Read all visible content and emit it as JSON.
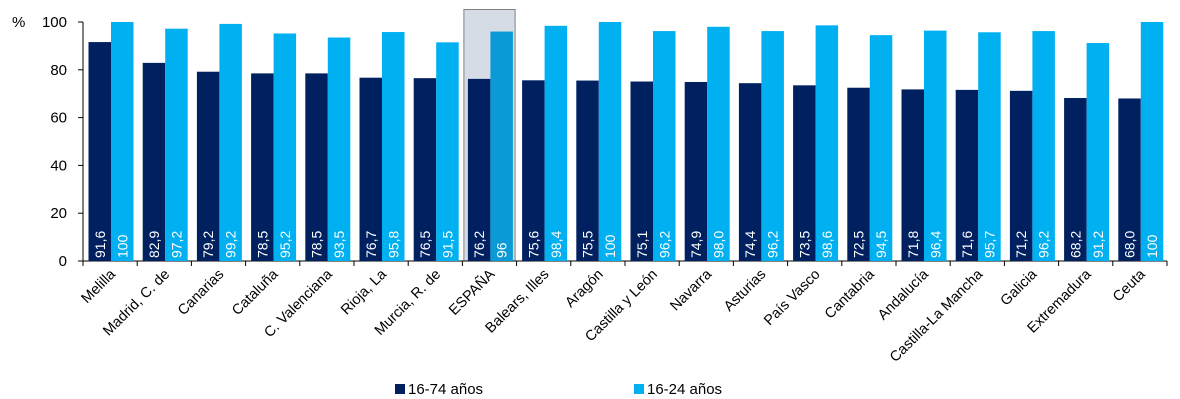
{
  "chart_data": {
    "type": "bar",
    "ylabel": "%",
    "ylim": [
      0,
      100
    ],
    "yticks": [
      0,
      20,
      40,
      60,
      80,
      100
    ],
    "grid": false,
    "legend_position": "bottom",
    "highlighted_category": "ESPAÑA",
    "categories": [
      "Melilla",
      "Madrid, C. de",
      "Canarias",
      "Cataluña",
      "C. Valenciana",
      "Rioja, La",
      "Murcia, R. de",
      "ESPAÑA",
      "Balears, Illes",
      "Aragón",
      "Castilla y León",
      "Navarra",
      "Asturias",
      "País Vasco",
      "Cantabria",
      "Andalucía",
      "Castilla-La Mancha",
      "Galicia",
      "Extremadura",
      "Ceuta"
    ],
    "series": [
      {
        "name": "16-74 años",
        "color": "#002060",
        "values": [
          91.6,
          82.9,
          79.2,
          78.5,
          78.5,
          76.7,
          76.5,
          76.2,
          75.6,
          75.5,
          75.1,
          74.9,
          74.4,
          73.5,
          72.5,
          71.8,
          71.6,
          71.2,
          68.2,
          68.0
        ],
        "labels": [
          "91,6",
          "82,9",
          "79,2",
          "78,5",
          "78,5",
          "76,7",
          "76,5",
          "76,2",
          "75,6",
          "75,5",
          "75,1",
          "74,9",
          "74,4",
          "73,5",
          "72,5",
          "71,8",
          "71,6",
          "71,2",
          "68,2",
          "68,0"
        ]
      },
      {
        "name": "16-24 años",
        "color": "#00B0F0",
        "values": [
          100,
          97.2,
          99.2,
          95.2,
          93.5,
          95.8,
          91.5,
          96,
          98.4,
          100,
          96.2,
          98.0,
          96.2,
          98.6,
          94.5,
          96.4,
          95.7,
          96.2,
          91.2,
          100
        ],
        "labels": [
          "100",
          "97,2",
          "99,2",
          "95,2",
          "93,5",
          "95,8",
          "91,5",
          "96",
          "98,4",
          "100",
          "96,2",
          "98,0",
          "96,2",
          "98,6",
          "94,5",
          "96,4",
          "95,7",
          "96,2",
          "91,2",
          "100"
        ]
      }
    ]
  }
}
